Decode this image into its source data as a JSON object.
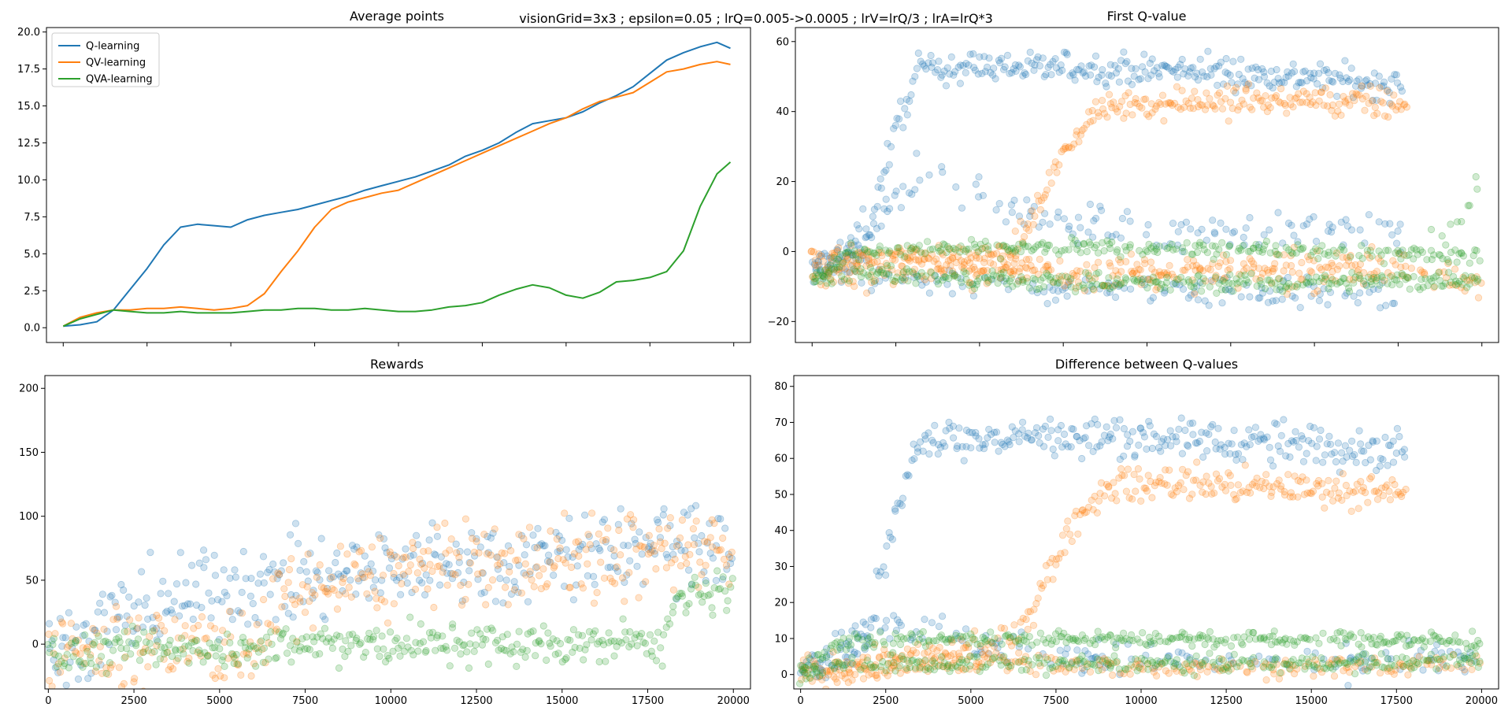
{
  "suptitle": "visionGrid=3x3 ; epsilon=0.05 ; lrQ=0.005->0.0005 ; lrV=lrQ/3 ; lrA=lrQ*3",
  "colors": {
    "q_learning": "#1f77b4",
    "qv_learning": "#ff7f0e",
    "qva_learning": "#2ca02c",
    "axes": "#000000",
    "background": "#ffffff"
  },
  "chart_data": [
    {
      "id": "average-points",
      "type": "line",
      "title": "Average points",
      "xlabel": "",
      "ylabel": "",
      "xlim": [
        -500,
        20500
      ],
      "ylim": [
        -1.0,
        20.3
      ],
      "xticks": [
        0,
        2500,
        5000,
        7500,
        10000,
        12500,
        15000,
        17500,
        20000
      ],
      "xtick_labels": [
        "",
        "",
        "",
        "",
        "",
        "",
        "",
        "",
        ""
      ],
      "yticks": [
        0.0,
        2.5,
        5.0,
        7.5,
        10.0,
        12.5,
        15.0,
        17.5,
        20.0
      ],
      "ytick_labels": [
        "0.0",
        "2.5",
        "5.0",
        "7.5",
        "10.0",
        "12.5",
        "15.0",
        "17.5",
        "20.0"
      ],
      "legend": {
        "position": "upper-left",
        "entries": [
          "Q-learning",
          "QV-learning",
          "QVA-learning"
        ]
      },
      "series": [
        {
          "name": "Q-learning",
          "color_key": "q_learning",
          "x": [
            0,
            500,
            1000,
            1500,
            2000,
            2500,
            3000,
            3500,
            4000,
            4500,
            5000,
            5500,
            6000,
            6500,
            7000,
            7500,
            8000,
            8500,
            9000,
            9500,
            10000,
            10500,
            11000,
            11500,
            12000,
            12500,
            13000,
            13500,
            14000,
            14500,
            15000,
            15500,
            16000,
            16500,
            17000,
            17500,
            18000,
            18500,
            19000,
            19500,
            19900
          ],
          "y": [
            0.1,
            0.2,
            0.4,
            1.2,
            2.6,
            4.0,
            5.6,
            6.8,
            7.0,
            6.9,
            6.8,
            7.3,
            7.6,
            7.8,
            8.0,
            8.3,
            8.6,
            8.9,
            9.3,
            9.6,
            9.9,
            10.2,
            10.6,
            11.0,
            11.6,
            12.0,
            12.5,
            13.2,
            13.8,
            14.0,
            14.2,
            14.6,
            15.2,
            15.7,
            16.3,
            17.2,
            18.1,
            18.6,
            19.0,
            19.3,
            18.9
          ]
        },
        {
          "name": "QV-learning",
          "color_key": "qv_learning",
          "x": [
            0,
            500,
            1000,
            1500,
            2000,
            2500,
            3000,
            3500,
            4000,
            4500,
            5000,
            5500,
            6000,
            6500,
            7000,
            7500,
            8000,
            8500,
            9000,
            9500,
            10000,
            10500,
            11000,
            11500,
            12000,
            12500,
            13000,
            13500,
            14000,
            14500,
            15000,
            15500,
            16000,
            16500,
            17000,
            17500,
            18000,
            18500,
            19000,
            19500,
            19900
          ],
          "y": [
            0.1,
            0.7,
            1.0,
            1.2,
            1.2,
            1.3,
            1.3,
            1.4,
            1.3,
            1.2,
            1.3,
            1.5,
            2.3,
            3.8,
            5.2,
            6.8,
            8.0,
            8.5,
            8.8,
            9.1,
            9.3,
            9.8,
            10.3,
            10.8,
            11.3,
            11.8,
            12.3,
            12.8,
            13.3,
            13.8,
            14.2,
            14.8,
            15.3,
            15.6,
            15.9,
            16.6,
            17.3,
            17.5,
            17.8,
            18.0,
            17.8
          ]
        },
        {
          "name": "QVA-learning",
          "color_key": "qva_learning",
          "x": [
            0,
            500,
            1000,
            1500,
            2000,
            2500,
            3000,
            3500,
            4000,
            4500,
            5000,
            5500,
            6000,
            6500,
            7000,
            7500,
            8000,
            8500,
            9000,
            9500,
            10000,
            10500,
            11000,
            11500,
            12000,
            12500,
            13000,
            13500,
            14000,
            14500,
            15000,
            15500,
            16000,
            16500,
            17000,
            17500,
            18000,
            18500,
            19000,
            19500,
            19900
          ],
          "y": [
            0.1,
            0.6,
            0.9,
            1.2,
            1.1,
            1.0,
            1.0,
            1.1,
            1.0,
            1.0,
            1.0,
            1.1,
            1.2,
            1.2,
            1.3,
            1.3,
            1.2,
            1.2,
            1.3,
            1.2,
            1.1,
            1.1,
            1.2,
            1.4,
            1.5,
            1.7,
            2.2,
            2.6,
            2.9,
            2.7,
            2.2,
            2.0,
            2.4,
            3.1,
            3.2,
            3.4,
            3.8,
            5.2,
            8.2,
            10.4,
            11.2
          ]
        }
      ]
    },
    {
      "id": "first-q-value",
      "type": "scatter",
      "title": "First Q-value",
      "xlabel": "",
      "ylabel": "",
      "xlim": [
        -500,
        20500
      ],
      "ylim": [
        -26,
        64
      ],
      "xticks": [
        0,
        2500,
        5000,
        7500,
        10000,
        12500,
        15000,
        17500,
        20000
      ],
      "xtick_labels": [
        "",
        "",
        "",
        "",
        "",
        "",
        "",
        "",
        ""
      ],
      "yticks": [
        -20,
        0,
        20,
        40,
        60
      ],
      "ytick_labels": [
        "−20",
        "0",
        "20",
        "40",
        "60"
      ],
      "alpha": 0.22,
      "series": [
        {
          "name": "Q-learning",
          "color_key": "q_learning",
          "x_range": [
            0,
            17600
          ],
          "bands": [
            {
              "x": [
                0,
                1500,
                2500,
                3200,
                5000,
                10000,
                15000,
                17600
              ],
              "y": [
                -5,
                0,
                35,
                52,
                53,
                52,
                50,
                47
              ],
              "spread": 4,
              "density": 1.0
            },
            {
              "x": [
                0,
                2000,
                3000,
                5000,
                7500,
                10000,
                15000,
                17600
              ],
              "y": [
                -5,
                8,
                22,
                15,
                8,
                6,
                5,
                4
              ],
              "spread": 5,
              "density": 0.45
            },
            {
              "x": [
                0,
                2000,
                5000,
                10000,
                15000,
                17600
              ],
              "y": [
                -6,
                -8,
                -10,
                -11,
                -12,
                -12
              ],
              "spread": 4,
              "density": 0.45
            }
          ]
        },
        {
          "name": "QV-learning",
          "color_key": "qv_learning",
          "x_range": [
            0,
            17800
          ],
          "bands": [
            {
              "x": [
                0,
                6000,
                6500,
                7500,
                8500,
                10000,
                15000,
                17800
              ],
              "y": [
                -4,
                0,
                8,
                28,
                40,
                43,
                43,
                42
              ],
              "spread": 4,
              "density": 1.0
            },
            {
              "x": [
                0,
                5000,
                10000,
                15000,
                17800,
                19500,
                20000
              ],
              "y": [
                -7,
                -6,
                -7,
                -7,
                -6,
                -8,
                -8
              ],
              "spread": 4,
              "density": 0.6
            },
            {
              "x": [
                0,
                5000,
                10000,
                15000,
                17800
              ],
              "y": [
                -1,
                -3,
                -4,
                -3,
                -2
              ],
              "spread": 3,
              "density": 0.35
            }
          ]
        },
        {
          "name": "QVA-learning",
          "color_key": "qva_learning",
          "x_range": [
            0,
            20000
          ],
          "bands": [
            {
              "x": [
                0,
                1000,
                5000,
                10000,
                15000,
                20000
              ],
              "y": [
                -8,
                0,
                1,
                1,
                0,
                -1
              ],
              "spread": 2,
              "density": 0.7
            },
            {
              "x": [
                0,
                1000,
                5000,
                10000,
                15000,
                20000
              ],
              "y": [
                -8,
                -6,
                -8,
                -9,
                -9,
                -8
              ],
              "spread": 2.5,
              "density": 0.8
            },
            {
              "x": [
                18500,
                19500,
                20000
              ],
              "y": [
                2,
                12,
                20
              ],
              "spread": 6,
              "density": 0.25
            }
          ]
        }
      ]
    },
    {
      "id": "rewards",
      "type": "scatter",
      "title": "Rewards",
      "xlabel": "",
      "ylabel": "",
      "xlim": [
        -100,
        20500
      ],
      "ylim": [
        -35,
        210
      ],
      "xticks": [
        0,
        2500,
        5000,
        7500,
        10000,
        12500,
        15000,
        17500,
        20000
      ],
      "xtick_labels": [
        "0",
        "2500",
        "5000",
        "7500",
        "10000",
        "12500",
        "15000",
        "17500",
        "20000"
      ],
      "yticks": [
        0,
        50,
        100,
        150,
        200
      ],
      "ytick_labels": [
        "0",
        "50",
        "100",
        "150",
        "200"
      ],
      "alpha": 0.22,
      "series": [
        {
          "name": "Q-learning",
          "color_key": "q_learning",
          "x_range": [
            0,
            20000
          ],
          "bands": [
            {
              "x": [
                0,
                2000,
                4000,
                6000,
                10000,
                15000,
                20000
              ],
              "y": [
                -8,
                20,
                40,
                45,
                60,
                70,
                80
              ],
              "spread": 30,
              "density": 1.0
            }
          ]
        },
        {
          "name": "QV-learning",
          "color_key": "qv_learning",
          "x_range": [
            0,
            20000
          ],
          "bands": [
            {
              "x": [
                0,
                6000,
                7000,
                10000,
                15000,
                20000
              ],
              "y": [
                -8,
                0,
                35,
                55,
                65,
                75
              ],
              "spread": 30,
              "density": 1.0
            }
          ]
        },
        {
          "name": "QVA-learning",
          "color_key": "qva_learning",
          "x_range": [
            0,
            20000
          ],
          "bands": [
            {
              "x": [
                0,
                5000,
                10000,
                15000,
                18000,
                18300,
                20000
              ],
              "y": [
                -8,
                -2,
                0,
                0,
                2,
                30,
                45
              ],
              "spread": 14,
              "density": 1.0
            }
          ]
        }
      ]
    },
    {
      "id": "difference-between-q-values",
      "type": "scatter",
      "title": "Difference between Q-values",
      "xlabel": "",
      "ylabel": "",
      "xlim": [
        -200,
        20500
      ],
      "ylim": [
        -4,
        83
      ],
      "xticks": [
        0,
        2500,
        5000,
        7500,
        10000,
        12500,
        15000,
        17500,
        20000
      ],
      "xtick_labels": [
        "0",
        "2500",
        "5000",
        "7500",
        "10000",
        "12500",
        "15000",
        "17500",
        "20000"
      ],
      "yticks": [
        0,
        10,
        20,
        30,
        40,
        50,
        60,
        70,
        80
      ],
      "ytick_labels": [
        "0",
        "10",
        "20",
        "30",
        "40",
        "50",
        "60",
        "70",
        "80"
      ],
      "alpha": 0.22,
      "series": [
        {
          "name": "Q-learning",
          "color_key": "q_learning",
          "x_range": [
            0,
            17800
          ],
          "bands": [
            {
              "x": [
                0,
                2000,
                2800,
                3400,
                5000,
                10000,
                15000,
                17800
              ],
              "y": [
                0,
                12,
                45,
                64,
                66,
                66,
                64,
                62
              ],
              "spread": 5,
              "density": 1.0
            },
            {
              "x": [
                0,
                3000,
                5000,
                10000,
                15000,
                20000
              ],
              "y": [
                1,
                14,
                8,
                4,
                3,
                4
              ],
              "spread": 4,
              "density": 0.4
            }
          ]
        },
        {
          "name": "QV-learning",
          "color_key": "qv_learning",
          "x_range": [
            0,
            17800
          ],
          "bands": [
            {
              "x": [
                0,
                6200,
                7000,
                8000,
                9000,
                12000,
                15000,
                17800
              ],
              "y": [
                0,
                8,
                22,
                42,
                52,
                53,
                52,
                50
              ],
              "spread": 4,
              "density": 1.0
            },
            {
              "x": [
                0,
                5000,
                10000,
                15000,
                20000
              ],
              "y": [
                1,
                3,
                2,
                2,
                3
              ],
              "spread": 2.5,
              "density": 0.6
            }
          ]
        },
        {
          "name": "QVA-learning",
          "color_key": "qva_learning",
          "x_range": [
            0,
            20000
          ],
          "bands": [
            {
              "x": [
                0,
                1000,
                5000,
                10000,
                15000,
                20000
              ],
              "y": [
                0,
                9,
                10,
                10,
                10,
                9
              ],
              "spread": 2,
              "density": 0.8
            },
            {
              "x": [
                0,
                1000,
                5000,
                10000,
                15000,
                20000
              ],
              "y": [
                0,
                3,
                3,
                3,
                3,
                4
              ],
              "spread": 2,
              "density": 0.8
            }
          ]
        }
      ]
    }
  ]
}
